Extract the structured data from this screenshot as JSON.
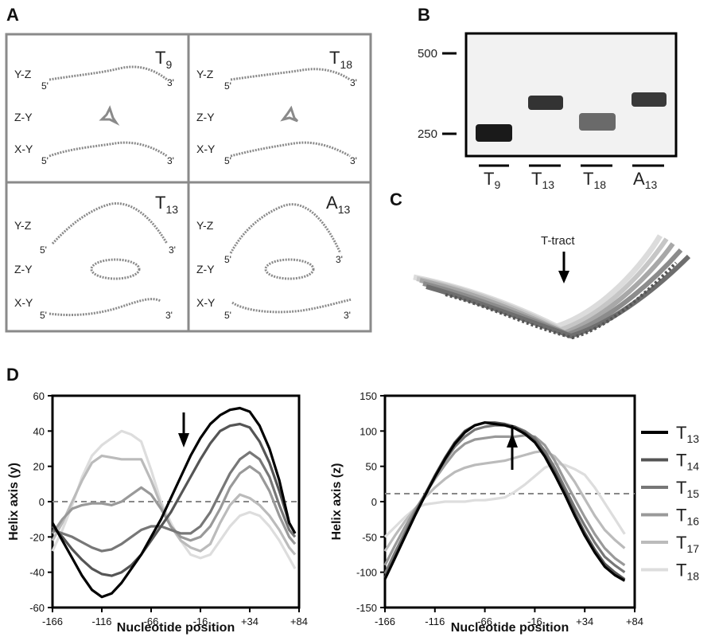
{
  "panels": {
    "A": {
      "label": "A",
      "row_labels": [
        "Y-Z",
        "Z-Y",
        "X-Y"
      ],
      "end5": "5'",
      "end3": "3'",
      "cells": [
        {
          "base": "T",
          "sub": "9"
        },
        {
          "base": "T",
          "sub": "18"
        },
        {
          "base": "T",
          "sub": "13"
        },
        {
          "base": "A",
          "sub": "13"
        }
      ]
    },
    "B": {
      "label": "B",
      "markers": [
        "500",
        "250"
      ],
      "lanes": [
        {
          "base": "T",
          "sub": "9"
        },
        {
          "base": "T",
          "sub": "13"
        },
        {
          "base": "T",
          "sub": "18"
        },
        {
          "base": "A",
          "sub": "13"
        }
      ]
    },
    "C": {
      "label": "C",
      "annotation": "T-tract"
    },
    "D": {
      "label": "D"
    }
  },
  "chart_data": [
    {
      "type": "line",
      "ylabel": "Helix axis (y)",
      "xlabel": "Nucleotide position",
      "xlim": [
        -166,
        84
      ],
      "ylim": [
        -60,
        60
      ],
      "xticks": [
        "-166",
        "-116",
        "-66",
        "-16",
        "+34",
        "+84"
      ],
      "yticks": [
        "60",
        "40",
        "20",
        "0",
        "-20",
        "-40",
        "-60"
      ],
      "x": [
        -166,
        -156,
        -146,
        -136,
        -126,
        -116,
        -106,
        -96,
        -86,
        -76,
        -66,
        -56,
        -46,
        -36,
        -26,
        -16,
        -6,
        4,
        14,
        24,
        34,
        44,
        54,
        64,
        74,
        80
      ],
      "series": [
        {
          "name": "T13",
          "color": "#000000",
          "values": [
            -12,
            -22,
            -32,
            -42,
            -50,
            -54,
            -52,
            -46,
            -38,
            -30,
            -20,
            -10,
            2,
            14,
            26,
            36,
            44,
            49,
            52,
            53,
            51,
            43,
            30,
            12,
            -12,
            -18
          ]
        },
        {
          "name": "T14",
          "color": "#555555",
          "values": [
            -14,
            -20,
            -27,
            -33,
            -38,
            -41,
            -42,
            -40,
            -36,
            -30,
            -22,
            -14,
            -6,
            4,
            14,
            24,
            33,
            40,
            43,
            44,
            42,
            34,
            22,
            6,
            -12,
            -18
          ]
        },
        {
          "name": "T15",
          "color": "#777777",
          "values": [
            -16,
            -18,
            -20,
            -23,
            -26,
            -28,
            -27,
            -24,
            -20,
            -16,
            -14,
            -14,
            -16,
            -18,
            -18,
            -14,
            -6,
            5,
            16,
            24,
            28,
            24,
            14,
            -2,
            -16,
            -20
          ]
        },
        {
          "name": "T16",
          "color": "#999999",
          "values": [
            -18,
            -10,
            -4,
            -2,
            -1,
            -1,
            -2,
            0,
            4,
            8,
            4,
            -4,
            -14,
            -20,
            -22,
            -20,
            -14,
            -4,
            8,
            16,
            20,
            16,
            6,
            -8,
            -20,
            -24
          ]
        },
        {
          "name": "T17",
          "color": "#bbbbbb",
          "values": [
            -22,
            -12,
            0,
            12,
            22,
            26,
            25,
            24,
            24,
            24,
            12,
            -2,
            -14,
            -22,
            -26,
            -28,
            -24,
            -12,
            -2,
            4,
            2,
            -2,
            -8,
            -16,
            -26,
            -30
          ]
        },
        {
          "name": "T18",
          "color": "#dddddd",
          "values": [
            -28,
            -16,
            -2,
            14,
            26,
            32,
            36,
            40,
            38,
            34,
            18,
            0,
            -12,
            -22,
            -30,
            -32,
            -30,
            -22,
            -14,
            -8,
            -6,
            -8,
            -14,
            -22,
            -32,
            -38
          ]
        }
      ]
    },
    {
      "type": "line",
      "ylabel": "Helix axis (z)",
      "xlabel": "Nucleotide position",
      "xlim": [
        -166,
        84
      ],
      "ylim": [
        -150,
        150
      ],
      "xticks": [
        "-166",
        "-116",
        "-66",
        "-16",
        "+34",
        "+84"
      ],
      "yticks": [
        "150",
        "100",
        "50",
        "0",
        "-50",
        "-100",
        "-150"
      ],
      "x": [
        -166,
        -156,
        -146,
        -136,
        -126,
        -116,
        -106,
        -96,
        -86,
        -76,
        -66,
        -56,
        -46,
        -36,
        -26,
        -16,
        -6,
        4,
        14,
        24,
        34,
        44,
        54,
        64,
        74
      ],
      "series": [
        {
          "name": "T13",
          "color": "#000000",
          "values": [
            -110,
            -80,
            -50,
            -20,
            8,
            35,
            60,
            82,
            98,
            108,
            112,
            110,
            108,
            104,
            96,
            84,
            64,
            38,
            10,
            -20,
            -48,
            -72,
            -92,
            -104,
            -112
          ]
        },
        {
          "name": "T14",
          "color": "#555555",
          "values": [
            -108,
            -78,
            -48,
            -18,
            10,
            37,
            62,
            84,
            100,
            108,
            112,
            112,
            110,
            106,
            98,
            86,
            66,
            42,
            14,
            -16,
            -44,
            -68,
            -88,
            -100,
            -110
          ]
        },
        {
          "name": "T15",
          "color": "#777777",
          "values": [
            -102,
            -72,
            -44,
            -16,
            10,
            36,
            58,
            78,
            92,
            102,
            106,
            108,
            108,
            106,
            100,
            90,
            72,
            48,
            20,
            -8,
            -34,
            -58,
            -78,
            -90,
            -100
          ]
        },
        {
          "name": "T16",
          "color": "#999999",
          "values": [
            -90,
            -62,
            -36,
            -12,
            10,
            32,
            52,
            70,
            82,
            88,
            90,
            92,
            92,
            92,
            94,
            92,
            80,
            58,
            30,
            4,
            -22,
            -46,
            -66,
            -80,
            -90
          ]
        },
        {
          "name": "T17",
          "color": "#bbbbbb",
          "values": [
            -70,
            -48,
            -28,
            -10,
            6,
            20,
            32,
            42,
            48,
            52,
            54,
            56,
            58,
            62,
            66,
            70,
            72,
            64,
            48,
            28,
            4,
            -20,
            -40,
            -54,
            -66
          ]
        },
        {
          "name": "T18",
          "color": "#dddddd",
          "values": [
            -50,
            -36,
            -22,
            -10,
            -4,
            -2,
            0,
            0,
            0,
            2,
            2,
            4,
            6,
            14,
            24,
            36,
            48,
            54,
            52,
            46,
            38,
            20,
            -2,
            -24,
            -46
          ]
        }
      ]
    }
  ],
  "legend": [
    {
      "base": "T",
      "sub": "13",
      "color": "#000000"
    },
    {
      "base": "T",
      "sub": "14",
      "color": "#555555"
    },
    {
      "base": "T",
      "sub": "15",
      "color": "#777777"
    },
    {
      "base": "T",
      "sub": "16",
      "color": "#999999"
    },
    {
      "base": "T",
      "sub": "17",
      "color": "#bbbbbb"
    },
    {
      "base": "T",
      "sub": "18",
      "color": "#dddddd"
    }
  ]
}
